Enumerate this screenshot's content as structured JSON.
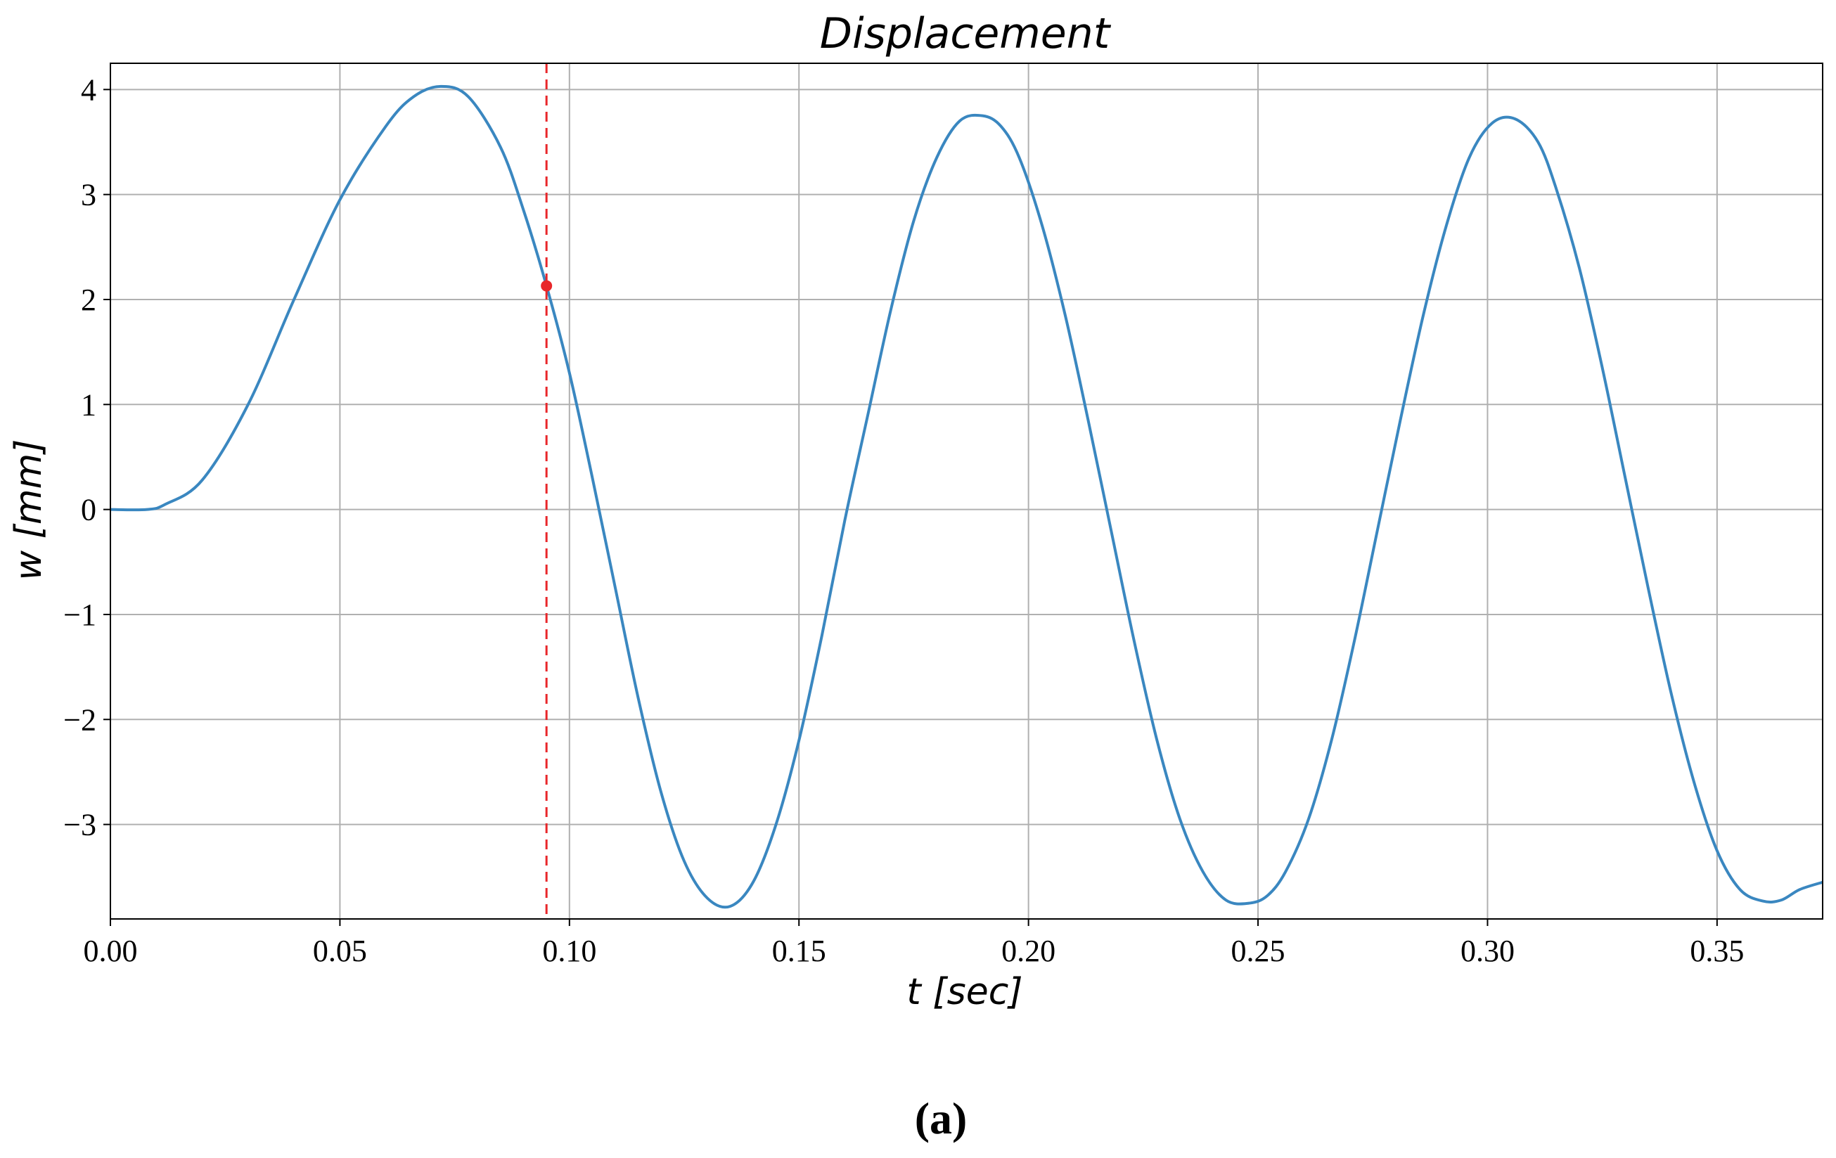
{
  "chart_data": {
    "type": "line",
    "title": "Displacement",
    "xlabel": "t [sec]",
    "ylabel": "w [mm]",
    "xlim": [
      0.0,
      0.373
    ],
    "ylim": [
      -3.9,
      4.25
    ],
    "grid": true,
    "xticks": [
      0.0,
      0.05,
      0.1,
      0.15,
      0.2,
      0.25,
      0.3,
      0.35
    ],
    "xtick_labels": [
      "0.00",
      "0.05",
      "0.10",
      "0.15",
      "0.20",
      "0.25",
      "0.30",
      "0.35"
    ],
    "yticks": [
      -3,
      -2,
      -1,
      0,
      1,
      2,
      3,
      4
    ],
    "ytick_labels": [
      "−3",
      "−2",
      "−1",
      "0",
      "1",
      "2",
      "3",
      "4"
    ],
    "series": [
      {
        "color": "#3a87c0",
        "x": [
          0.0,
          0.008,
          0.012,
          0.02,
          0.03,
          0.04,
          0.05,
          0.06,
          0.066,
          0.072,
          0.078,
          0.085,
          0.09,
          0.095,
          0.1,
          0.105,
          0.11,
          0.115,
          0.12,
          0.125,
          0.13,
          0.135,
          0.14,
          0.145,
          0.15,
          0.155,
          0.16,
          0.165,
          0.17,
          0.175,
          0.18,
          0.185,
          0.19,
          0.194,
          0.198,
          0.203,
          0.208,
          0.213,
          0.218,
          0.223,
          0.228,
          0.233,
          0.238,
          0.243,
          0.248,
          0.252,
          0.256,
          0.261,
          0.266,
          0.271,
          0.276,
          0.281,
          0.286,
          0.291,
          0.296,
          0.301,
          0.306,
          0.311,
          0.315,
          0.32,
          0.325,
          0.33,
          0.335,
          0.34,
          0.345,
          0.35,
          0.355,
          0.36,
          0.364,
          0.368,
          0.373
        ],
        "y": [
          0.0,
          0.0,
          0.05,
          0.28,
          1.0,
          2.0,
          2.95,
          3.65,
          3.93,
          4.03,
          3.93,
          3.45,
          2.85,
          2.13,
          1.3,
          0.3,
          -0.75,
          -1.8,
          -2.7,
          -3.35,
          -3.7,
          -3.78,
          -3.55,
          -3.0,
          -2.2,
          -1.2,
          -0.1,
          0.9,
          1.9,
          2.75,
          3.35,
          3.7,
          3.75,
          3.65,
          3.35,
          2.7,
          1.85,
          0.85,
          -0.2,
          -1.25,
          -2.2,
          -2.95,
          -3.45,
          -3.72,
          -3.75,
          -3.68,
          -3.45,
          -2.95,
          -2.2,
          -1.25,
          -0.2,
          0.85,
          1.85,
          2.7,
          3.35,
          3.68,
          3.72,
          3.5,
          3.05,
          2.3,
          1.35,
          0.3,
          -0.75,
          -1.75,
          -2.6,
          -3.25,
          -3.62,
          -3.73,
          -3.72,
          -3.62,
          -3.55
        ]
      }
    ],
    "marker": {
      "t": 0.095,
      "w": 2.13,
      "color": "#e8262a"
    },
    "caption": "(a)"
  }
}
